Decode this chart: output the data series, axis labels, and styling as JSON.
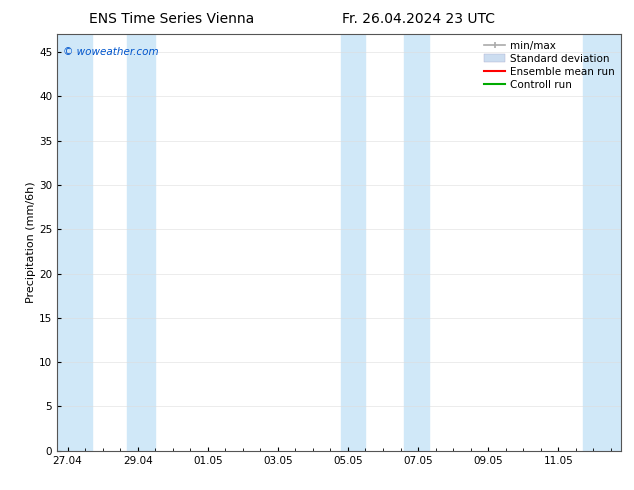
{
  "title_left": "ENS Time Series Vienna",
  "title_right": "Fr. 26.04.2024 23 UTC",
  "ylabel": "Precipitation (mm/6h)",
  "watermark": "© woweather.com",
  "watermark_color": "#0055cc",
  "ylim": [
    0,
    47
  ],
  "yticks": [
    0,
    5,
    10,
    15,
    20,
    25,
    30,
    35,
    40,
    45
  ],
  "xtick_labels": [
    "27.04",
    "29.04",
    "01.05",
    "03.05",
    "05.05",
    "07.05",
    "09.05",
    "11.05"
  ],
  "xtick_positions": [
    0,
    2,
    4,
    6,
    8,
    10,
    12,
    14
  ],
  "xmin": -0.3,
  "xmax": 15.8,
  "bg_color": "#ffffff",
  "plot_bg_color": "#ffffff",
  "shade_color": "#d0e8f8",
  "shade_alpha": 1.0,
  "shaded_bands": [
    [
      -0.3,
      0.7
    ],
    [
      1.7,
      2.5
    ],
    [
      7.8,
      8.5
    ],
    [
      9.6,
      10.3
    ],
    [
      14.7,
      15.8
    ]
  ],
  "legend_entries": [
    {
      "label": "min/max",
      "color": "#aaaaaa",
      "lw": 1.5
    },
    {
      "label": "Standard deviation",
      "color": "#ccddf0",
      "lw": 8
    },
    {
      "label": "Ensemble mean run",
      "color": "#ff0000",
      "lw": 1.5
    },
    {
      "label": "Controll run",
      "color": "#00aa00",
      "lw": 1.5
    }
  ],
  "title_fontsize": 10,
  "tick_fontsize": 7.5,
  "legend_fontsize": 7.5,
  "ylabel_fontsize": 8
}
